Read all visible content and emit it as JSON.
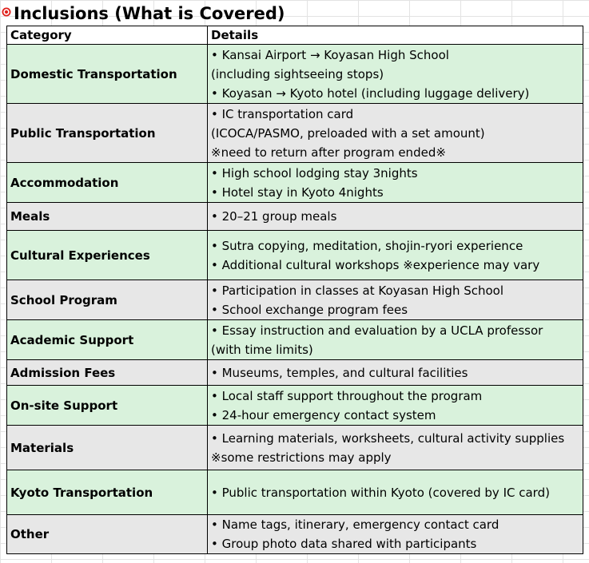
{
  "title": "Inclusions (What is Covered)",
  "title_icon": "target-bullseye-icon",
  "colors": {
    "green_row": "#d9f2dc",
    "gray_row": "#e7e7e7",
    "icon_red": "#e0201b"
  },
  "headers": {
    "category": "Category",
    "details": "Details"
  },
  "rows": [
    {
      "category": "Domestic Transportation",
      "shade": "green",
      "lines": [
        "• Kansai Airport → Koyasan High School",
        " (including sightseeing stops)",
        "• Koyasan → Kyoto hotel (including luggage delivery)"
      ]
    },
    {
      "category": "Public Transportation",
      "shade": "gray",
      "lines": [
        "• IC transportation card",
        " (ICOCA/PASMO, preloaded with a set amount)",
        "※need to return after program ended※"
      ]
    },
    {
      "category": "Accommodation",
      "shade": "green",
      "lines": [
        "• High school lodging stay 3nights",
        "• Hotel stay in Kyoto 4nights"
      ]
    },
    {
      "category": "Meals",
      "shade": "gray",
      "lines": [
        "• 20–21 group meals"
      ]
    },
    {
      "category": "Cultural Experiences",
      "shade": "green",
      "lines": [
        "• Sutra copying, meditation, shojin-ryori experience",
        "• Additional cultural workshops  ※experience may vary"
      ]
    },
    {
      "category": "School Program",
      "shade": "gray",
      "lines": [
        "• Participation in classes at Koyasan High School",
        "• School exchange program fees"
      ]
    },
    {
      "category": "Academic Support",
      "shade": "green",
      "lines": [
        "• Essay instruction and evaluation by a UCLA professor",
        "(with time limits)"
      ]
    },
    {
      "category": "Admission Fees",
      "shade": "gray",
      "lines": [
        "• Museums, temples, and cultural facilities"
      ]
    },
    {
      "category": "On-site Support",
      "shade": "green",
      "lines": [
        "• Local staff support throughout the program",
        "• 24-hour emergency contact system"
      ]
    },
    {
      "category": "Materials",
      "shade": "gray",
      "lines": [
        "• Learning materials, worksheets, cultural activity supplies",
        "※some restrictions may apply"
      ]
    },
    {
      "category": "Kyoto Transportation",
      "shade": "green",
      "lines": [
        "• Public transportation within Kyoto (covered by IC card)"
      ]
    },
    {
      "category": "Other",
      "shade": "gray",
      "lines": [
        "• Name tags, itinerary, emergency contact card",
        "• Group photo data shared with participants"
      ]
    }
  ]
}
